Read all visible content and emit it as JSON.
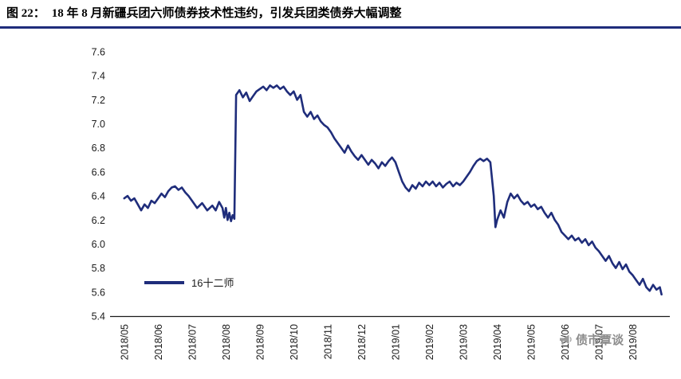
{
  "header": {
    "figure_label": "图 22：",
    "title": "18 年 8 月新疆兵团六师债券技术性违约，引发兵团类债券大幅调整"
  },
  "watermark": {
    "icon": "megaphone-icon",
    "text": "债市覃谈"
  },
  "colors": {
    "accent_navy": "#1f2d7b",
    "axis_black": "#1a1a1a",
    "watermark_grey": "#8c8c8c"
  },
  "chart_data": {
    "type": "line",
    "title": "",
    "xlabel": "",
    "ylabel": "",
    "grid": false,
    "legend_position": "lower-left-inside",
    "ylim": [
      5.4,
      7.6
    ],
    "xlim": [
      -0.3,
      16.0
    ],
    "y_ticks": [
      5.4,
      5.6,
      5.8,
      6.0,
      6.2,
      6.4,
      6.6,
      6.8,
      7.0,
      7.2,
      7.4,
      7.6
    ],
    "x_tick_labels": [
      "2018/05",
      "2018/06",
      "2018/07",
      "2018/08",
      "2018/09",
      "2018/10",
      "2018/11",
      "2018/12",
      "2019/01",
      "2019/02",
      "2019/03",
      "2019/04",
      "2019/05",
      "2019/06",
      "2019/07",
      "2019/08"
    ],
    "series": [
      {
        "name": "16十二师",
        "color": "#1f2d7b",
        "points": [
          [
            0,
            6.38
          ],
          [
            0.1,
            6.4
          ],
          [
            0.2,
            6.36
          ],
          [
            0.3,
            6.38
          ],
          [
            0.4,
            6.33
          ],
          [
            0.5,
            6.28
          ],
          [
            0.6,
            6.33
          ],
          [
            0.7,
            6.3
          ],
          [
            0.8,
            6.36
          ],
          [
            0.9,
            6.34
          ],
          [
            1,
            6.38
          ],
          [
            1.1,
            6.42
          ],
          [
            1.2,
            6.39
          ],
          [
            1.3,
            6.44
          ],
          [
            1.4,
            6.47
          ],
          [
            1.5,
            6.48
          ],
          [
            1.6,
            6.45
          ],
          [
            1.7,
            6.47
          ],
          [
            1.8,
            6.43
          ],
          [
            1.9,
            6.4
          ],
          [
            2,
            6.36
          ],
          [
            2.15,
            6.3
          ],
          [
            2.3,
            6.34
          ],
          [
            2.45,
            6.28
          ],
          [
            2.6,
            6.32
          ],
          [
            2.7,
            6.28
          ],
          [
            2.8,
            6.35
          ],
          [
            2.9,
            6.3
          ],
          [
            2.95,
            6.22
          ],
          [
            3,
            6.3
          ],
          [
            3.05,
            6.2
          ],
          [
            3.1,
            6.26
          ],
          [
            3.15,
            6.19
          ],
          [
            3.2,
            6.24
          ],
          [
            3.25,
            6.21
          ],
          [
            3.3,
            7.24
          ],
          [
            3.4,
            7.28
          ],
          [
            3.5,
            7.22
          ],
          [
            3.6,
            7.26
          ],
          [
            3.7,
            7.19
          ],
          [
            3.8,
            7.23
          ],
          [
            3.9,
            7.27
          ],
          [
            4,
            7.29
          ],
          [
            4.1,
            7.31
          ],
          [
            4.2,
            7.28
          ],
          [
            4.3,
            7.32
          ],
          [
            4.4,
            7.3
          ],
          [
            4.5,
            7.32
          ],
          [
            4.6,
            7.29
          ],
          [
            4.7,
            7.31
          ],
          [
            4.8,
            7.27
          ],
          [
            4.9,
            7.24
          ],
          [
            5,
            7.27
          ],
          [
            5.1,
            7.2
          ],
          [
            5.2,
            7.24
          ],
          [
            5.3,
            7.1
          ],
          [
            5.4,
            7.06
          ],
          [
            5.5,
            7.1
          ],
          [
            5.6,
            7.04
          ],
          [
            5.7,
            7.07
          ],
          [
            5.8,
            7.02
          ],
          [
            5.9,
            6.99
          ],
          [
            6,
            6.97
          ],
          [
            6.1,
            6.93
          ],
          [
            6.2,
            6.88
          ],
          [
            6.3,
            6.84
          ],
          [
            6.4,
            6.8
          ],
          [
            6.5,
            6.76
          ],
          [
            6.6,
            6.82
          ],
          [
            6.7,
            6.77
          ],
          [
            6.8,
            6.73
          ],
          [
            6.9,
            6.7
          ],
          [
            7,
            6.74
          ],
          [
            7.1,
            6.7
          ],
          [
            7.2,
            6.66
          ],
          [
            7.3,
            6.7
          ],
          [
            7.4,
            6.67
          ],
          [
            7.5,
            6.63
          ],
          [
            7.6,
            6.68
          ],
          [
            7.7,
            6.65
          ],
          [
            7.8,
            6.69
          ],
          [
            7.9,
            6.72
          ],
          [
            8,
            6.68
          ],
          [
            8.1,
            6.6
          ],
          [
            8.2,
            6.52
          ],
          [
            8.3,
            6.47
          ],
          [
            8.4,
            6.44
          ],
          [
            8.5,
            6.49
          ],
          [
            8.6,
            6.46
          ],
          [
            8.7,
            6.51
          ],
          [
            8.8,
            6.48
          ],
          [
            8.9,
            6.52
          ],
          [
            9,
            6.49
          ],
          [
            9.1,
            6.52
          ],
          [
            9.2,
            6.48
          ],
          [
            9.3,
            6.51
          ],
          [
            9.4,
            6.47
          ],
          [
            9.5,
            6.5
          ],
          [
            9.6,
            6.52
          ],
          [
            9.7,
            6.48
          ],
          [
            9.8,
            6.51
          ],
          [
            9.9,
            6.49
          ],
          [
            10,
            6.52
          ],
          [
            10.1,
            6.56
          ],
          [
            10.2,
            6.6
          ],
          [
            10.3,
            6.65
          ],
          [
            10.4,
            6.69
          ],
          [
            10.5,
            6.71
          ],
          [
            10.6,
            6.69
          ],
          [
            10.7,
            6.71
          ],
          [
            10.8,
            6.68
          ],
          [
            10.9,
            6.4
          ],
          [
            10.95,
            6.14
          ],
          [
            11,
            6.2
          ],
          [
            11.1,
            6.28
          ],
          [
            11.2,
            6.22
          ],
          [
            11.3,
            6.35
          ],
          [
            11.4,
            6.42
          ],
          [
            11.5,
            6.38
          ],
          [
            11.6,
            6.41
          ],
          [
            11.7,
            6.36
          ],
          [
            11.8,
            6.33
          ],
          [
            11.9,
            6.35
          ],
          [
            12,
            6.31
          ],
          [
            12.1,
            6.33
          ],
          [
            12.2,
            6.29
          ],
          [
            12.3,
            6.31
          ],
          [
            12.4,
            6.26
          ],
          [
            12.5,
            6.22
          ],
          [
            12.6,
            6.26
          ],
          [
            12.7,
            6.2
          ],
          [
            12.8,
            6.16
          ],
          [
            12.9,
            6.1
          ],
          [
            13,
            6.07
          ],
          [
            13.1,
            6.04
          ],
          [
            13.2,
            6.07
          ],
          [
            13.3,
            6.03
          ],
          [
            13.4,
            6.05
          ],
          [
            13.5,
            6.01
          ],
          [
            13.6,
            6.04
          ],
          [
            13.7,
            5.99
          ],
          [
            13.8,
            6.02
          ],
          [
            13.9,
            5.97
          ],
          [
            14,
            5.94
          ],
          [
            14.1,
            5.9
          ],
          [
            14.2,
            5.86
          ],
          [
            14.3,
            5.9
          ],
          [
            14.4,
            5.84
          ],
          [
            14.5,
            5.8
          ],
          [
            14.6,
            5.85
          ],
          [
            14.7,
            5.79
          ],
          [
            14.8,
            5.83
          ],
          [
            14.9,
            5.77
          ],
          [
            15,
            5.74
          ],
          [
            15.1,
            5.7
          ],
          [
            15.2,
            5.66
          ],
          [
            15.3,
            5.71
          ],
          [
            15.4,
            5.64
          ],
          [
            15.5,
            5.61
          ],
          [
            15.6,
            5.66
          ],
          [
            15.7,
            5.62
          ],
          [
            15.8,
            5.64
          ],
          [
            15.85,
            5.58
          ]
        ]
      }
    ]
  }
}
